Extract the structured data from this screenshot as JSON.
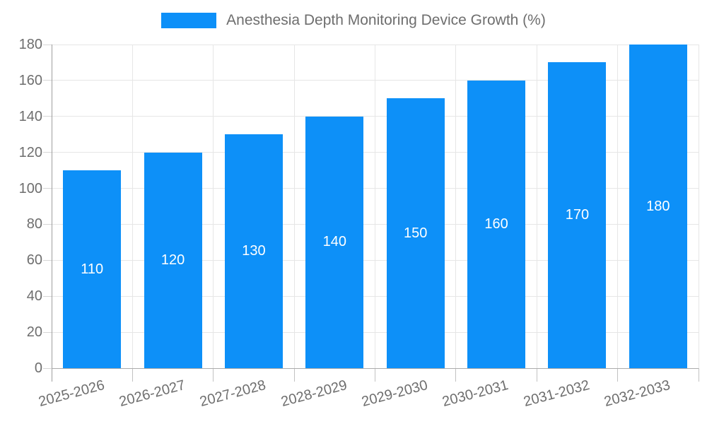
{
  "chart_data": {
    "type": "bar",
    "title": "Anesthesia Depth Monitoring Device Growth (%)",
    "categories": [
      "2025-2026",
      "2026-2027",
      "2027-2028",
      "2028-2029",
      "2029-2030",
      "2030-2031",
      "2031-2032",
      "2032-2033"
    ],
    "values": [
      110,
      120,
      130,
      140,
      150,
      160,
      170,
      180
    ],
    "xlabel": "",
    "ylabel": "",
    "ylim": [
      0,
      180
    ],
    "yticks": [
      0,
      20,
      40,
      60,
      80,
      100,
      120,
      140,
      160,
      180
    ],
    "grid": true,
    "legend_position": "top",
    "bar_value_labels_visible": true
  },
  "colors": {
    "bar": "#0d90f8",
    "axis_text": "#6e6e6e",
    "gridline": "#e6e6e6",
    "axis_line": "#9e9e9e",
    "value_label": "#ffffff",
    "background": "#ffffff"
  }
}
